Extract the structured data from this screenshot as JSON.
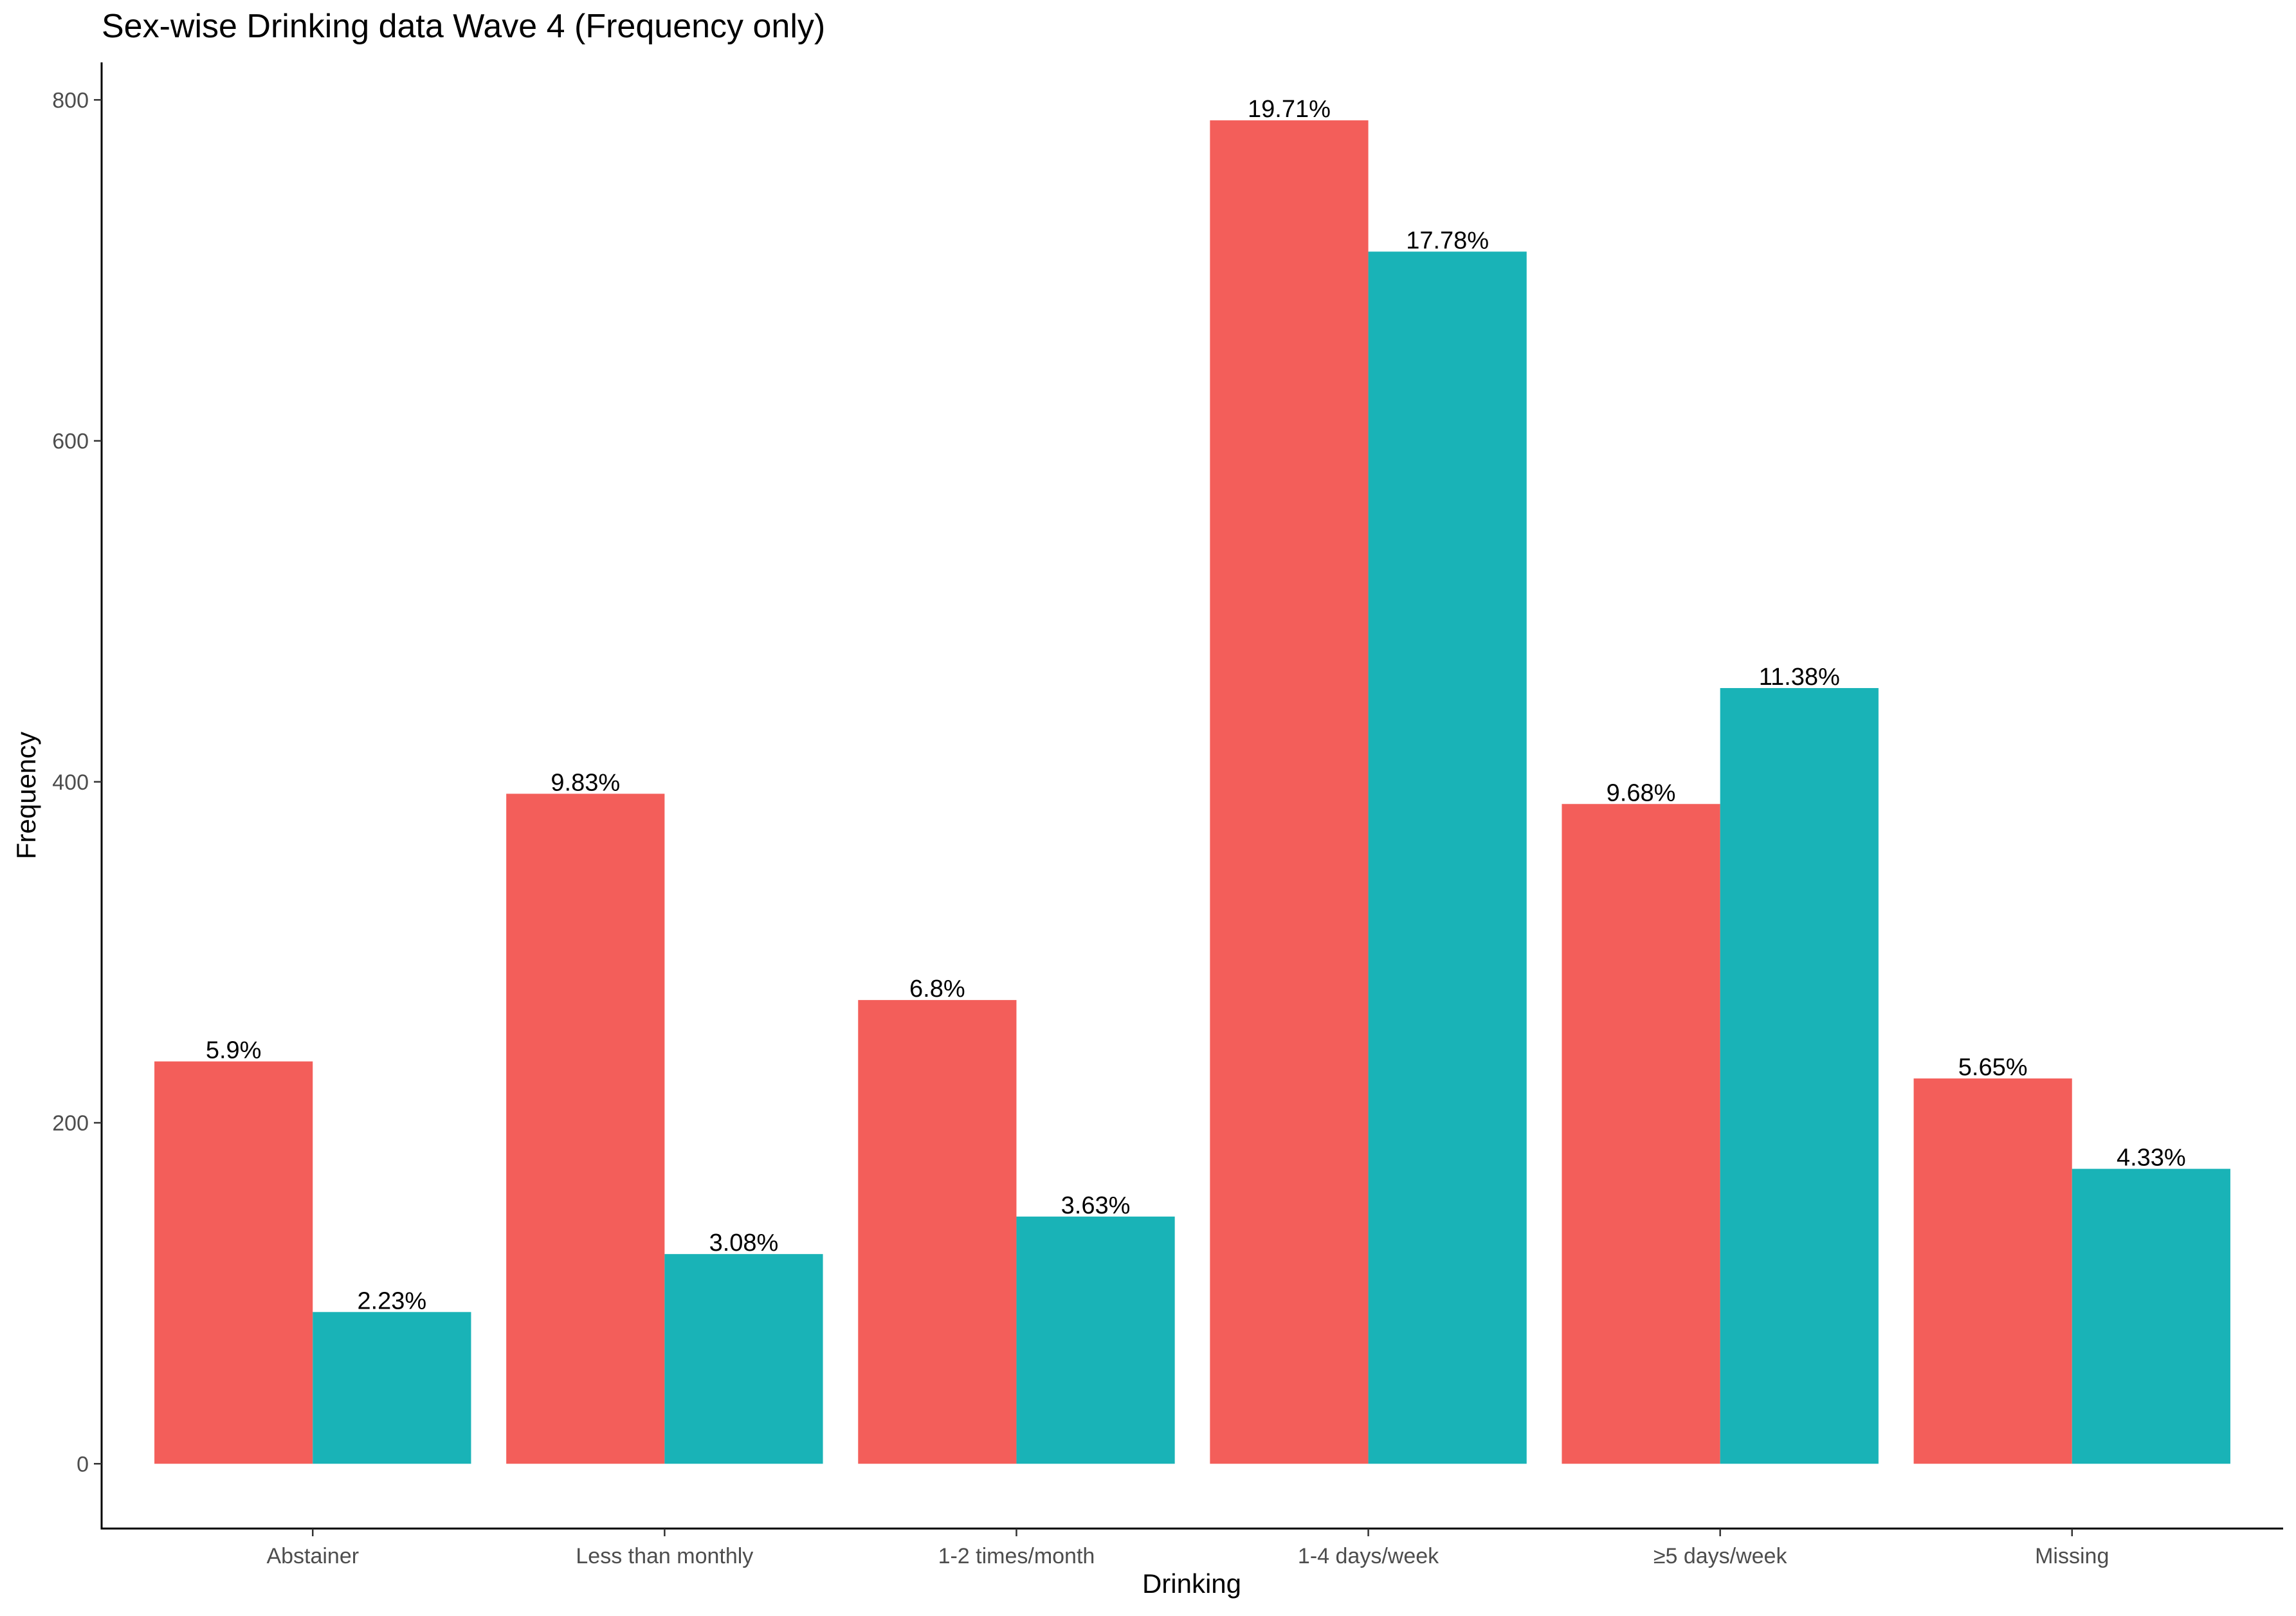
{
  "chart_data": {
    "type": "bar",
    "title": "Sex-wise Drinking data Wave 4 (Frequency only)",
    "xlabel": "Drinking",
    "ylabel": "Frequency",
    "ylim": [
      -38,
      822
    ],
    "yticks": [
      0,
      200,
      400,
      600,
      800
    ],
    "grid": false,
    "legend": "none",
    "categories": [
      "Abstainer",
      "Less than monthly",
      "1-2 times/month",
      "1-4 days/week",
      "≥5 days/week",
      "Missing"
    ],
    "series": [
      {
        "color": "#F35E5A",
        "values": [
          236,
          393,
          272,
          788,
          387,
          226
        ],
        "labels": [
          "5.9%",
          "9.83%",
          "6.8%",
          "19.71%",
          "9.68%",
          "5.65%"
        ]
      },
      {
        "color": "#19B3B7",
        "values": [
          89,
          123,
          145,
          711,
          455,
          173
        ],
        "labels": [
          "2.23%",
          "3.08%",
          "3.63%",
          "17.78%",
          "11.38%",
          "4.33%"
        ]
      }
    ]
  }
}
